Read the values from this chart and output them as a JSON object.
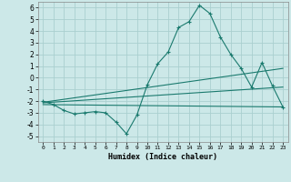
{
  "xlabel": "Humidex (Indice chaleur)",
  "bg_color": "#cce8e8",
  "grid_color": "#aacfcf",
  "line_color": "#1a7a6e",
  "xlim": [
    -0.5,
    23.5
  ],
  "ylim": [
    -5.5,
    6.5
  ],
  "yticks": [
    -5,
    -4,
    -3,
    -2,
    -1,
    0,
    1,
    2,
    3,
    4,
    5,
    6
  ],
  "xticks": [
    0,
    1,
    2,
    3,
    4,
    5,
    6,
    7,
    8,
    9,
    10,
    11,
    12,
    13,
    14,
    15,
    16,
    17,
    18,
    19,
    20,
    21,
    22,
    23
  ],
  "line_main": {
    "x": [
      0,
      1,
      2,
      3,
      4,
      5,
      6,
      7,
      8,
      9,
      10,
      11,
      12,
      13,
      14,
      15,
      16,
      17,
      18,
      19,
      20,
      21,
      22,
      23
    ],
    "y": [
      -2.0,
      -2.3,
      -2.8,
      -3.1,
      -3.0,
      -2.9,
      -3.0,
      -3.8,
      -4.8,
      -3.2,
      -0.6,
      1.2,
      2.2,
      4.3,
      4.8,
      6.2,
      5.5,
      3.5,
      2.0,
      0.8,
      -0.8,
      1.3,
      -0.7,
      -2.5
    ]
  },
  "line_upper_trend": {
    "x": [
      0,
      23
    ],
    "y": [
      -2.1,
      0.8
    ]
  },
  "line_lower_trend": {
    "x": [
      0,
      23
    ],
    "y": [
      -2.3,
      -2.5
    ]
  },
  "line_mid_trend": {
    "x": [
      0,
      23
    ],
    "y": [
      -2.15,
      -0.8
    ]
  }
}
